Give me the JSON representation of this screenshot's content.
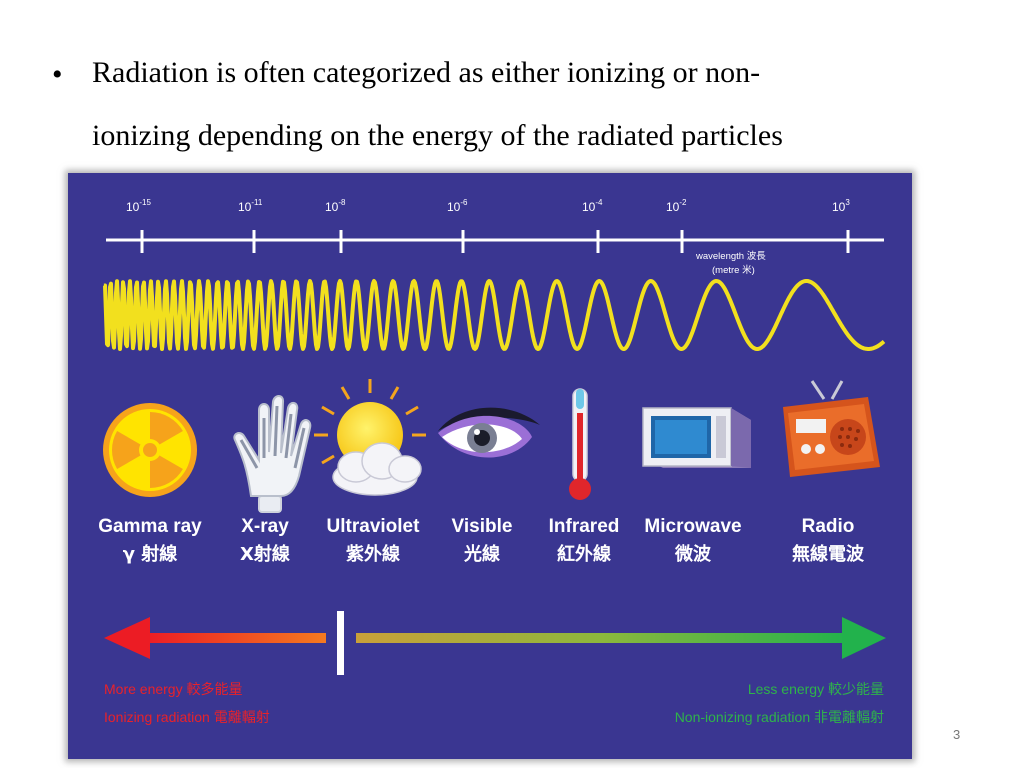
{
  "slide": {
    "bullet_symbol": "•",
    "text_line1": "Radiation is often categorized as either ionizing or non-",
    "text_line2": "ionizing depending on the energy of the radiated particles",
    "page_number": "3"
  },
  "figure": {
    "scale": {
      "ticks": [
        {
          "base": "10",
          "exp": "-15"
        },
        {
          "base": "10",
          "exp": "-11"
        },
        {
          "base": "10",
          "exp": "-8"
        },
        {
          "base": "10",
          "exp": "-6"
        },
        {
          "base": "10",
          "exp": "-4"
        },
        {
          "base": "10",
          "exp": "-2"
        },
        {
          "base": "10",
          "exp": "3"
        }
      ],
      "label_line1": "wavelength 波長",
      "label_line2": "(metre 米)"
    },
    "types": [
      {
        "name": "Gamma ray",
        "cn": "γ 射線",
        "icon": "radiation-icon"
      },
      {
        "name": "X-ray",
        "cn": "X射線",
        "icon": "hand-xray-icon"
      },
      {
        "name": "Ultraviolet",
        "cn": "紫外線",
        "icon": "sun-icon"
      },
      {
        "name": "Visible",
        "cn": "光線",
        "icon": "eye-icon"
      },
      {
        "name": "Infrared",
        "cn": "紅外線",
        "icon": "thermometer-icon"
      },
      {
        "name": "Microwave",
        "cn": "微波",
        "icon": "microwave-icon"
      },
      {
        "name": "Radio",
        "cn": "無線電波",
        "icon": "radio-icon"
      }
    ],
    "energy": {
      "more_energy": "More energy 較多能量",
      "ionizing": "Ionizing radiation 電離輻射",
      "less_energy": "Less energy 較少能量",
      "non_ionizing": "Non-ionizing radiation 非電離輻射"
    },
    "colors": {
      "background": "#3a3691",
      "wave": "#f2e01e",
      "label_white": "#ffffff",
      "ionizing_red": "#e8222a",
      "non_ionizing_green": "#2fb34a"
    }
  }
}
